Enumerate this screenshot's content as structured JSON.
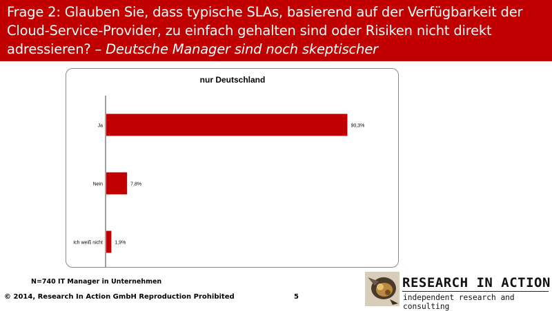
{
  "slide": {
    "title_main": "Frage 2: Glauben Sie, dass typische SLAs, basierend auf der Verfügbarkeit der Cloud-Service-Provider, zu einfach gehalten sind oder Risiken nicht direkt adressieren? – ",
    "title_emphasis": "Deutsche Manager sind noch skeptischer",
    "footnote": "N=740 IT Manager in Unternehmen",
    "copyright": "© 2014, Research In Action GmbH  Reproduction Prohibited",
    "page_number": "5"
  },
  "logo": {
    "name": "RESEARCH IN ACTION",
    "tagline": "independent research and consulting"
  },
  "colors": {
    "header_bg": "#c00000",
    "bar": "#c00000"
  },
  "chart_data": {
    "type": "bar",
    "orientation": "horizontal",
    "title": "nur Deutschland",
    "categories": [
      "Ja",
      "Nein",
      "Ich weiß nicht"
    ],
    "values": [
      90.3,
      7.8,
      1.9
    ],
    "value_labels": [
      "90,3%",
      "7,8%",
      "1,9%"
    ],
    "xlim": [
      0,
      100
    ],
    "xlabel": "",
    "ylabel": "",
    "grid": false,
    "legend": "none"
  }
}
